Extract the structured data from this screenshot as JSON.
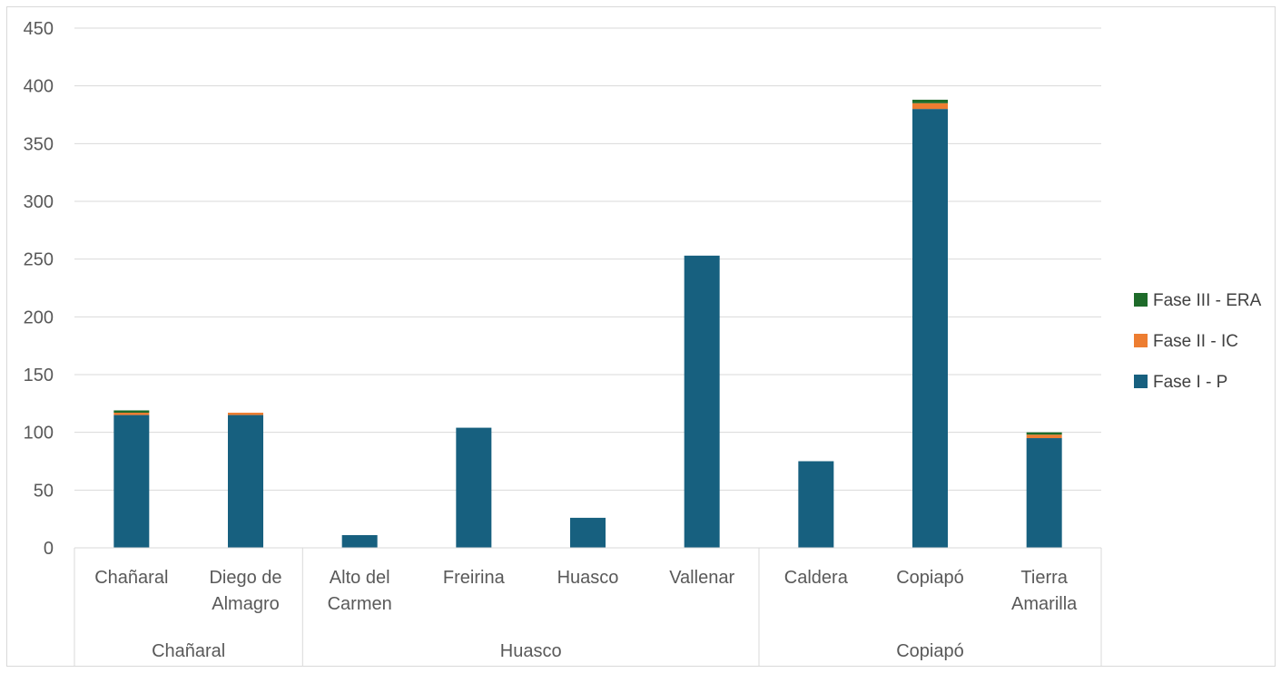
{
  "chart_data": {
    "type": "bar",
    "stacked": true,
    "categories": [
      "Chañaral",
      "Diego de Almagro",
      "Alto del Carmen",
      "Freirina",
      "Huasco",
      "Vallenar",
      "Caldera",
      "Copiapó",
      "Tierra Amarilla"
    ],
    "category_lines": [
      [
        "Chañaral"
      ],
      [
        "Diego de",
        "Almagro"
      ],
      [
        "Alto del",
        "Carmen"
      ],
      [
        "Freirina"
      ],
      [
        "Huasco"
      ],
      [
        "Vallenar"
      ],
      [
        "Caldera"
      ],
      [
        "Copiapó"
      ],
      [
        "Tierra",
        "Amarilla"
      ]
    ],
    "groups": [
      {
        "label": "Chañaral",
        "count": 2
      },
      {
        "label": "Huasco",
        "count": 4
      },
      {
        "label": "Copiapó",
        "count": 3
      }
    ],
    "series": [
      {
        "name": "Fase I - P",
        "color": "#17607f",
        "values": [
          115,
          115,
          11,
          104,
          26,
          253,
          75,
          380,
          95
        ]
      },
      {
        "name": "Fase II - IC",
        "color": "#ed7d31",
        "values": [
          2,
          2,
          0,
          0,
          0,
          0,
          0,
          5,
          3
        ]
      },
      {
        "name": "Fase III - ERA",
        "color": "#1e6b2a",
        "values": [
          2,
          0,
          0,
          0,
          0,
          0,
          0,
          3,
          2
        ]
      }
    ],
    "ylim": [
      0,
      450
    ],
    "yticks": [
      0,
      50,
      100,
      150,
      200,
      250,
      300,
      350,
      400,
      450
    ],
    "grid": true,
    "legend_position": "right",
    "title": "",
    "xlabel": "",
    "ylabel": ""
  }
}
